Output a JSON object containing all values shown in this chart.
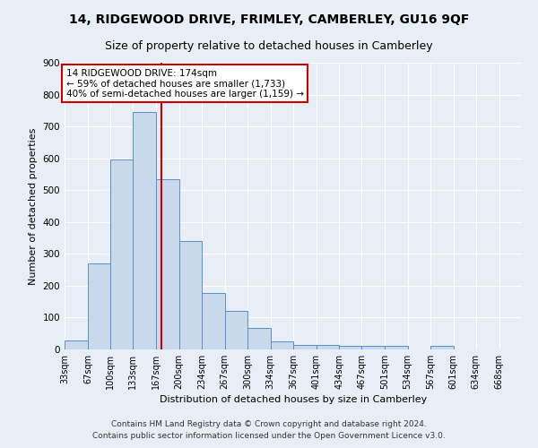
{
  "title": "14, RIDGEWOOD DRIVE, FRIMLEY, CAMBERLEY, GU16 9QF",
  "subtitle": "Size of property relative to detached houses in Camberley",
  "xlabel": "Distribution of detached houses by size in Camberley",
  "ylabel": "Number of detached properties",
  "bar_edges": [
    33,
    67,
    100,
    133,
    167,
    200,
    234,
    267,
    300,
    334,
    367,
    401,
    434,
    467,
    501,
    534,
    567,
    601,
    634,
    668,
    701
  ],
  "bar_heights": [
    27,
    270,
    595,
    745,
    535,
    340,
    178,
    120,
    68,
    25,
    13,
    15,
    10,
    10,
    10,
    0,
    10,
    0,
    0,
    0
  ],
  "bar_color": "#c9d9ec",
  "bar_edgecolor": "#5b8fc9",
  "vline_x": 174,
  "vline_color": "#cc0000",
  "annotation_line1": "14 RIDGEWOOD DRIVE: 174sqm",
  "annotation_line2": "← 59% of detached houses are smaller (1,733)",
  "annotation_line3": "40% of semi-detached houses are larger (1,159) →",
  "annotation_box_edgecolor": "#cc0000",
  "annotation_box_facecolor": "#ffffff",
  "ylim": [
    0,
    900
  ],
  "yticks": [
    0,
    100,
    200,
    300,
    400,
    500,
    600,
    700,
    800,
    900
  ],
  "footnote1": "Contains HM Land Registry data © Crown copyright and database right 2024.",
  "footnote2": "Contains public sector information licensed under the Open Government Licence v3.0.",
  "bg_color": "#e8eef5",
  "grid_color": "#ffffff",
  "title_fontsize": 10,
  "subtitle_fontsize": 9,
  "axis_fontsize": 8,
  "tick_fontsize": 7,
  "footnote_fontsize": 6.5
}
